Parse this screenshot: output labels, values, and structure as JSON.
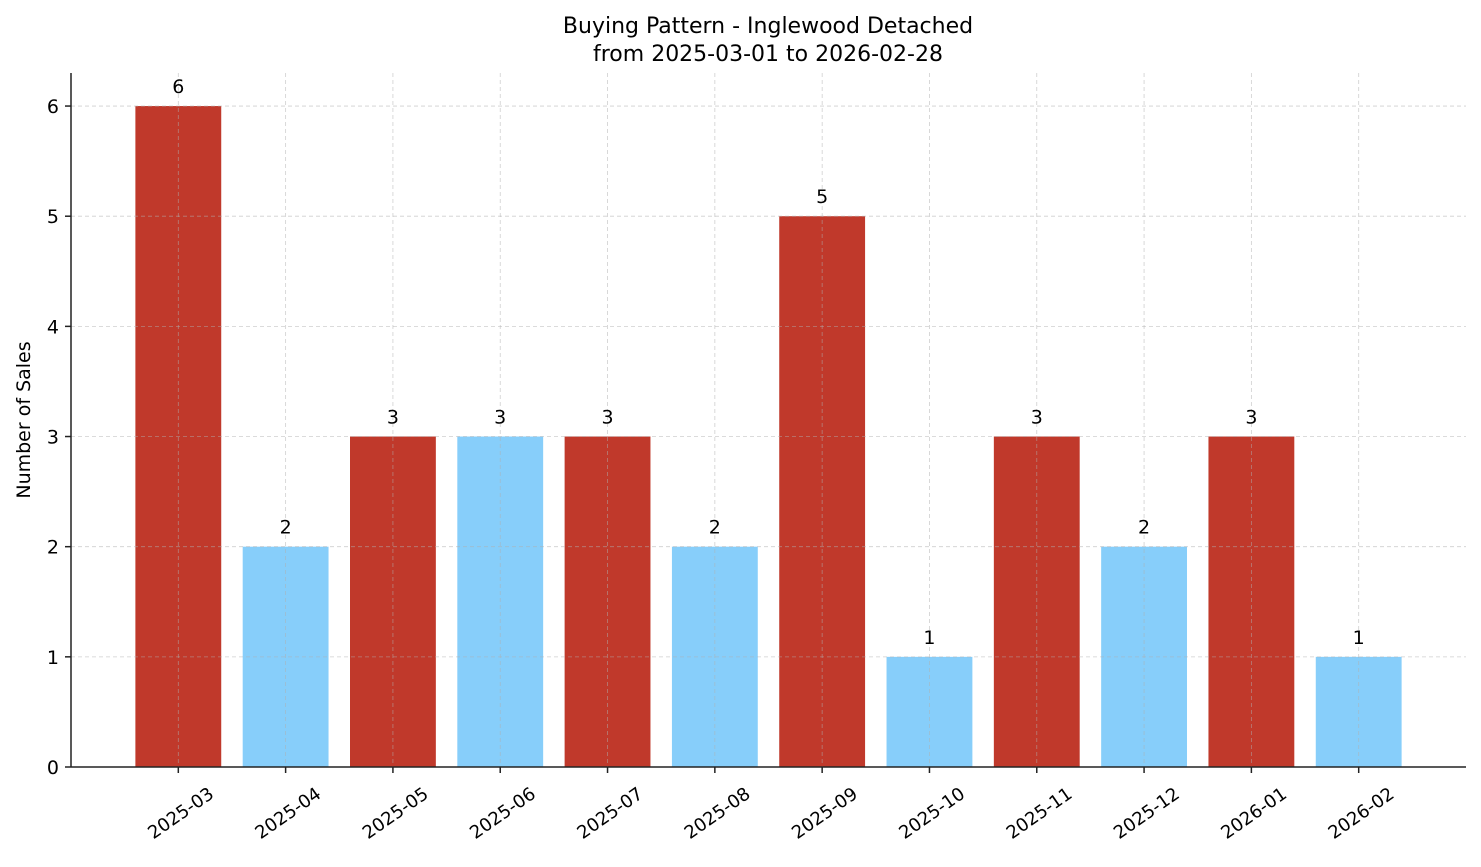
{
  "chart_data": {
    "type": "bar",
    "title": "Buying Pattern - Inglewood Detached",
    "subtitle": "from 2025-03-01 to 2026-02-28",
    "xlabel": "",
    "ylabel": "Number of Sales",
    "categories": [
      "2025-03",
      "2025-04",
      "2025-05",
      "2025-06",
      "2025-07",
      "2025-08",
      "2025-09",
      "2025-10",
      "2025-11",
      "2025-12",
      "2026-01",
      "2026-02"
    ],
    "values": [
      6,
      2,
      3,
      3,
      3,
      2,
      5,
      1,
      3,
      2,
      3,
      1
    ],
    "bar_colors": [
      "#c0392b",
      "#87cefa",
      "#c0392b",
      "#87cefa",
      "#c0392b",
      "#87cefa",
      "#c0392b",
      "#87cefa",
      "#c0392b",
      "#87cefa",
      "#c0392b",
      "#87cefa"
    ],
    "data_labels": [
      "6",
      "2",
      "3",
      "3",
      "3",
      "2",
      "5",
      "1",
      "3",
      "2",
      "3",
      "1"
    ],
    "yticks": [
      "0",
      "1",
      "2",
      "3",
      "4",
      "5",
      "6"
    ],
    "ylim": [
      0,
      6.3
    ],
    "grid": true,
    "grid_style": "dashed"
  }
}
